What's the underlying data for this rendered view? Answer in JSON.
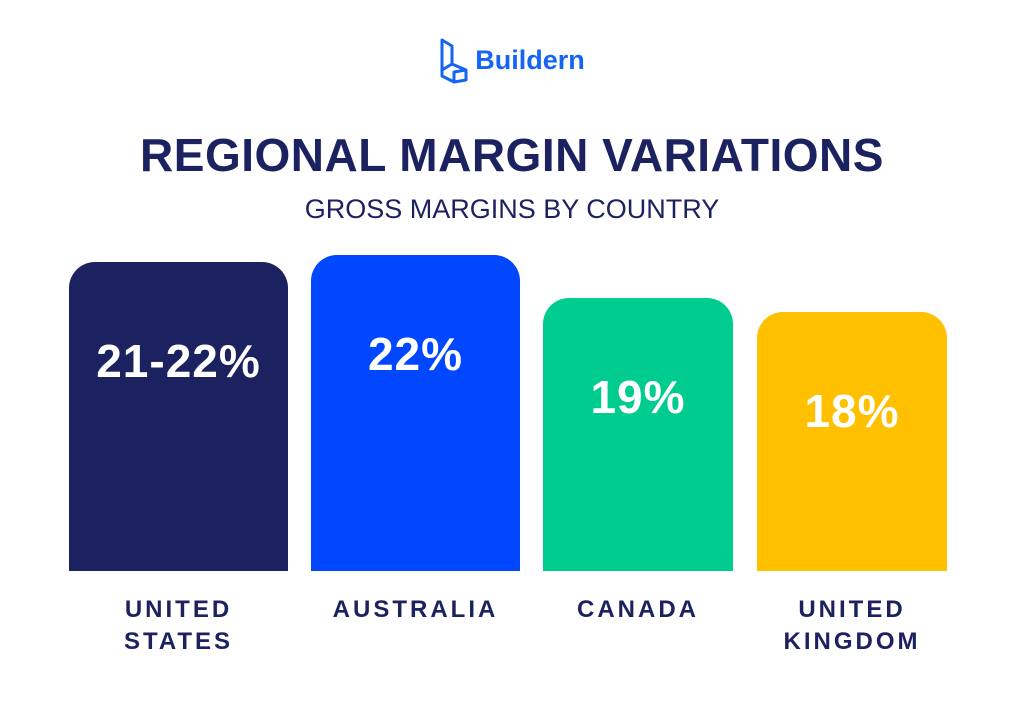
{
  "logo": "Buildern",
  "chart_data": {
    "type": "bar",
    "title": "REGIONAL MARGIN VARIATIONS",
    "subtitle": "GROSS MARGINS BY COUNTRY",
    "categories": [
      "UNITED STATES",
      "AUSTRALIA",
      "CANADA",
      "UNITED KINGDOM"
    ],
    "values": [
      21.5,
      22,
      19,
      18
    ],
    "value_labels": [
      "21-22%",
      "22%",
      "19%",
      "18%"
    ],
    "colors": [
      "#1c2260",
      "#0047ff",
      "#00cc8f",
      "#ffc000"
    ]
  }
}
